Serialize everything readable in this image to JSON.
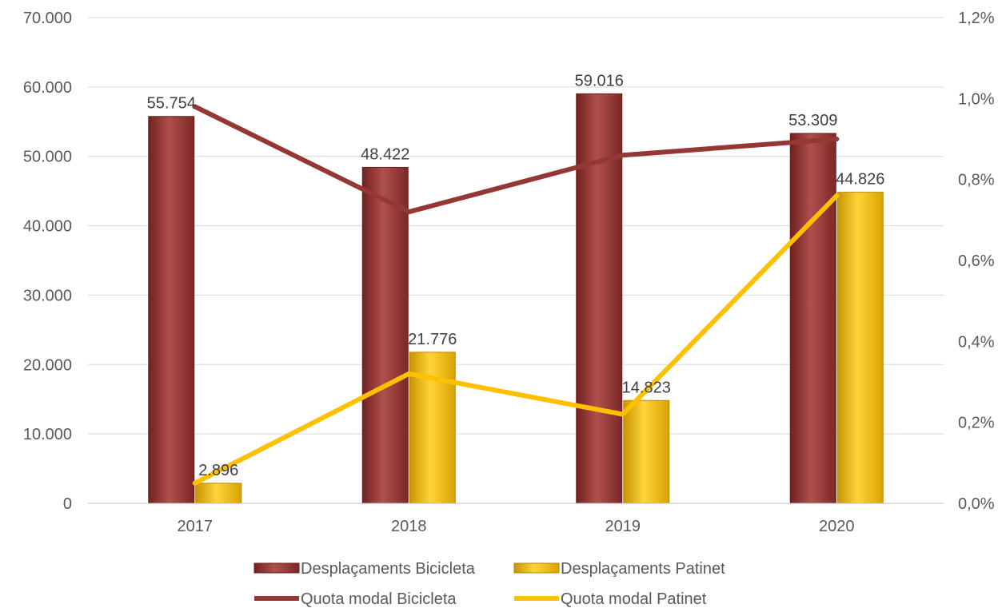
{
  "chart_data": {
    "type": "bar",
    "categories": [
      "2017",
      "2018",
      "2019",
      "2020"
    ],
    "bar_series": [
      {
        "name": "Desplaçaments Bicicleta",
        "values": [
          55754,
          48422,
          59016,
          53309
        ],
        "labels": [
          "55.754",
          "48.422",
          "59.016",
          "53.309"
        ],
        "color": "#9E3A38"
      },
      {
        "name": "Desplaçaments Patinet",
        "values": [
          2896,
          21776,
          14823,
          44826
        ],
        "labels": [
          "2.896",
          "21.776",
          "14.823",
          "44.826"
        ],
        "color": "#FFC000"
      }
    ],
    "line_series": [
      {
        "name": "Quota modal Bicicleta",
        "values": [
          0.98,
          0.72,
          0.86,
          0.9
        ],
        "color": "#953735"
      },
      {
        "name": "Quota modal Patinet",
        "values": [
          0.05,
          0.32,
          0.22,
          0.76
        ],
        "color": "#FFC000"
      }
    ],
    "y_left": {
      "range": [
        0,
        70000
      ],
      "ticks": [
        0,
        10000,
        20000,
        30000,
        40000,
        50000,
        60000,
        70000
      ],
      "tick_labels": [
        "0",
        "10.000",
        "20.000",
        "30.000",
        "40.000",
        "50.000",
        "60.000",
        "70.000"
      ]
    },
    "y_right": {
      "range": [
        0,
        1.2
      ],
      "ticks": [
        0,
        0.2,
        0.4,
        0.6,
        0.8,
        1.0,
        1.2
      ],
      "tick_labels": [
        "0,0%",
        "0,2%",
        "0,4%",
        "0,6%",
        "0,8%",
        "1,0%",
        "1,2%"
      ]
    },
    "grid": true,
    "legend_position": "bottom"
  }
}
